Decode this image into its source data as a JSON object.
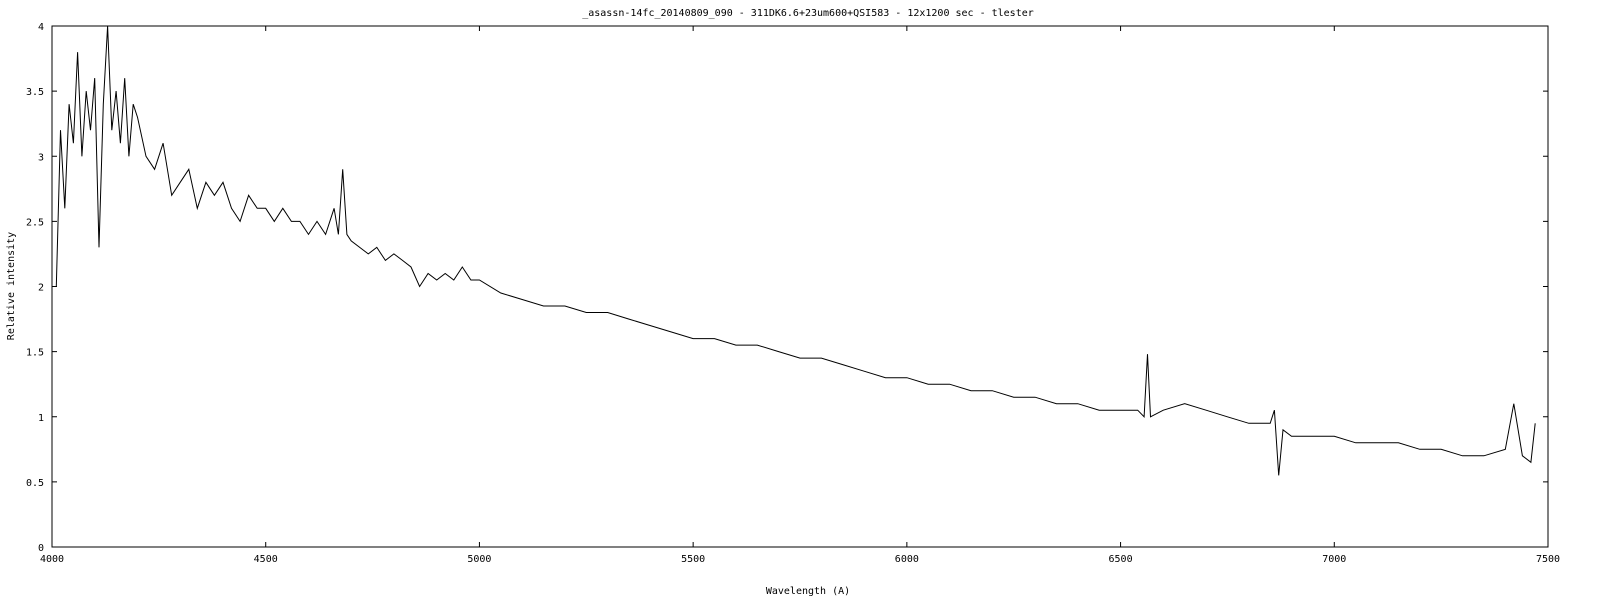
{
  "chart_data": {
    "type": "line",
    "title": "_asassn-14fc_20140809_090 - 311DK6.6+23um600+QSI583 - 12x1200 sec - tlester",
    "xlabel": "Wavelength (A)",
    "ylabel": "Relative intensity",
    "xlim": [
      4000,
      7500
    ],
    "ylim": [
      0,
      4
    ],
    "xticks": [
      "4000",
      "4500",
      "5000",
      "5500",
      "6000",
      "6500",
      "7000",
      "7500"
    ],
    "yticks": [
      "0",
      "0.5",
      "1",
      "1.5",
      "2",
      "2.5",
      "3",
      "3.5",
      "4"
    ],
    "grid": false,
    "series": [
      {
        "x": [
          4010,
          4020,
          4030,
          4040,
          4050,
          4060,
          4070,
          4080,
          4090,
          4100,
          4110,
          4120,
          4130,
          4140,
          4150,
          4160,
          4170,
          4180,
          4190,
          4200,
          4220,
          4240,
          4260,
          4280,
          4300,
          4320,
          4340,
          4360,
          4380,
          4400,
          4420,
          4440,
          4460,
          4480,
          4500,
          4520,
          4540,
          4560,
          4580,
          4600,
          4620,
          4640,
          4660,
          4670,
          4680,
          4690,
          4700,
          4720,
          4740,
          4760,
          4780,
          4800,
          4820,
          4840,
          4860,
          4880,
          4900,
          4920,
          4940,
          4960,
          4980,
          5000,
          5050,
          5100,
          5150,
          5200,
          5250,
          5300,
          5350,
          5400,
          5450,
          5500,
          5550,
          5600,
          5650,
          5700,
          5750,
          5800,
          5850,
          5900,
          5950,
          6000,
          6050,
          6100,
          6150,
          6200,
          6250,
          6300,
          6350,
          6400,
          6450,
          6500,
          6540,
          6555,
          6563,
          6570,
          6600,
          6650,
          6700,
          6750,
          6800,
          6850,
          6860,
          6870,
          6880,
          6900,
          6950,
          7000,
          7050,
          7100,
          7150,
          7200,
          7250,
          7300,
          7350,
          7400,
          7420,
          7440,
          7460,
          7470
        ],
        "y": [
          2.0,
          3.2,
          2.6,
          3.4,
          3.1,
          3.8,
          3.0,
          3.5,
          3.2,
          3.6,
          2.3,
          3.4,
          4.0,
          3.2,
          3.5,
          3.1,
          3.6,
          3.0,
          3.4,
          3.3,
          3.0,
          2.9,
          3.1,
          2.7,
          2.8,
          2.9,
          2.6,
          2.8,
          2.7,
          2.8,
          2.6,
          2.5,
          2.7,
          2.6,
          2.6,
          2.5,
          2.6,
          2.5,
          2.5,
          2.4,
          2.5,
          2.4,
          2.6,
          2.4,
          2.9,
          2.4,
          2.35,
          2.3,
          2.25,
          2.3,
          2.2,
          2.25,
          2.2,
          2.15,
          2.0,
          2.1,
          2.05,
          2.1,
          2.05,
          2.15,
          2.05,
          2.05,
          1.95,
          1.9,
          1.85,
          1.85,
          1.8,
          1.8,
          1.75,
          1.7,
          1.65,
          1.6,
          1.6,
          1.55,
          1.55,
          1.5,
          1.45,
          1.45,
          1.4,
          1.35,
          1.3,
          1.3,
          1.25,
          1.25,
          1.2,
          1.2,
          1.15,
          1.15,
          1.1,
          1.1,
          1.05,
          1.05,
          1.05,
          1.0,
          1.48,
          1.0,
          1.05,
          1.1,
          1.05,
          1.0,
          0.95,
          0.95,
          1.05,
          0.55,
          0.9,
          0.85,
          0.85,
          0.85,
          0.8,
          0.8,
          0.8,
          0.75,
          0.75,
          0.7,
          0.7,
          0.75,
          1.1,
          0.7,
          0.65,
          0.95
        ]
      }
    ]
  }
}
